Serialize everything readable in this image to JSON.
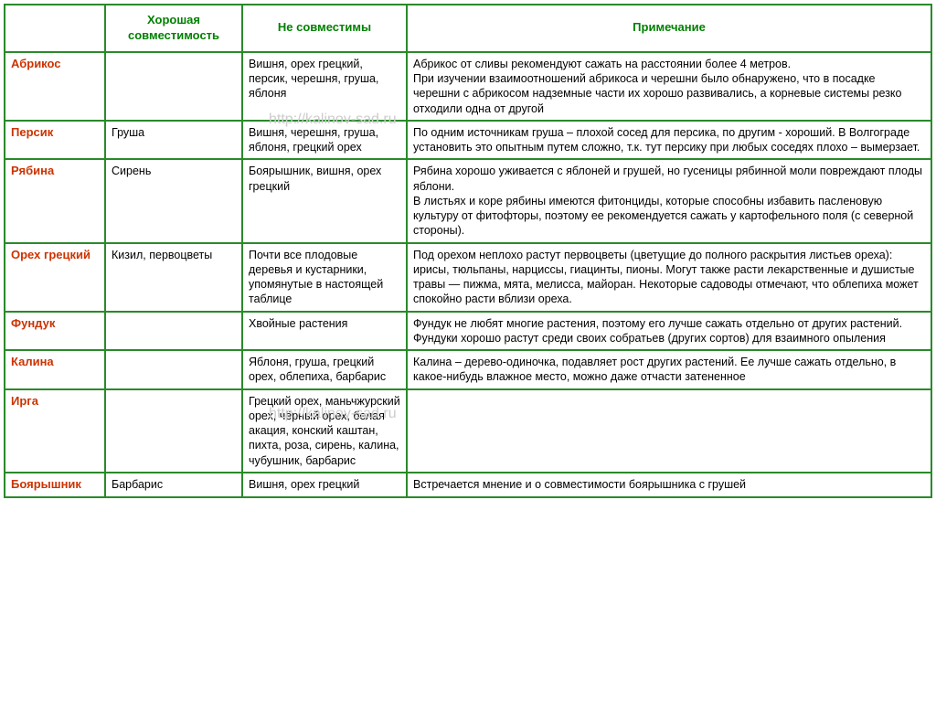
{
  "watermark": "http://kalinov-sad.ru",
  "border_color": "#2a8a2a",
  "header_text_color": "#008000",
  "plant_text_color": "#cc3300",
  "font_family": "Tahoma, Arial, sans-serif",
  "cell_fontsize_pt": 9.5,
  "columns": {
    "plant": "",
    "good": "Хорошая совместимость",
    "bad": "Не совместимы",
    "note": "Примечание"
  },
  "rows": [
    {
      "plant": "Абрикос",
      "good": "",
      "bad": "Вишня, орех грецкий, персик, черешня, груша, яблоня",
      "note": "Абрикос от сливы рекомендуют сажать на расстоянии более 4 метров.\nПри изучении взаимоотношений абрикоса и черешни было обнаружено, что в посадке черешни с абрикосом надземные части их хорошо развивались, а корневые системы резко отходили одна от другой"
    },
    {
      "plant": "Персик",
      "good": "Груша",
      "bad": "Вишня, черешня, груша, яблоня, грецкий орех",
      "note": "По одним источникам груша – плохой сосед для персика, по другим -  хороший. В Волгограде установить это опытным путем сложно, т.к. тут персику при любых соседях плохо – вымерзает."
    },
    {
      "plant": "Рябина",
      "good": "Сирень",
      "bad": "Боярышник, вишня, орех грецкий",
      "note": "Рябина хорошо уживается с яблоней и грушей, но гусеницы рябинной моли повреждают плоды  яблони.\nВ листьях и коре рябины имеются фитонциды, которые способны избавить пасленовую культуру от фитофторы, поэтому ее рекомендуется сажать у картофельного поля (с северной стороны)."
    },
    {
      "plant": "Орех грецкий",
      "good": "Кизил, первоцветы",
      "bad": "Почти все плодовые деревья и кустарники, упомянутые в настоящей таблице",
      "note": "Под орехом неплохо растут первоцветы (цветущие до полного раскрытия листьев ореха): ирисы, тюльпаны, нарциссы, гиацинты, пионы. Могут также расти лекарственные и душистые травы — пижма, мята, мелисса, майоран. Некоторые садоводы отмечают, что облепиха может спокойно расти вблизи ореха."
    },
    {
      "plant": "Фундук",
      "good": "",
      "bad": "Хвойные растения",
      "note": "Фундук не любят многие растения, поэтому его лучше сажать отдельно от других растений. Фундуки хорошо растут среди своих собратьев (других сортов) для взаимного опыления"
    },
    {
      "plant": "Калина",
      "good": "",
      "bad": "Яблоня, груша, грецкий орех, облепиха, барбарис",
      "note": "Калина – дерево-одиночка, подавляет рост других растений. Ее лучше сажать отдельно, в какое-нибудь влажное место, можно даже отчасти затененное"
    },
    {
      "plant": "Ирга",
      "good": "",
      "bad": "Грецкий орех, маньчжурский орех, чёрный орех, белая акация, конский каштан, пихта, роза, сирень, калина, чубушник, барбарис",
      "note": ""
    },
    {
      "plant": "Боярышник",
      "good": "Барбарис",
      "bad": "Вишня, орех грецкий",
      "note": "Встречается мнение и о совместимости боярышника с грушей"
    }
  ]
}
